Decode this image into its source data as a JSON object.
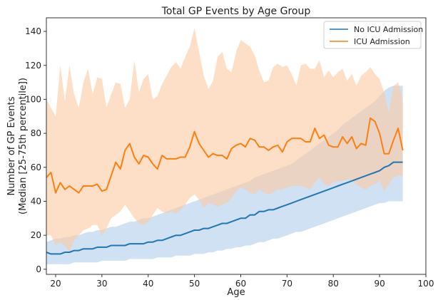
{
  "chart_data": {
    "type": "line",
    "title": "Total GP Events by Age Group",
    "xlabel": "Age",
    "ylabel_line1": "Number of GP Events",
    "ylabel_line2": "(Median [25-75th percentile])",
    "xlim": [
      18,
      100
    ],
    "ylim": [
      -3,
      148
    ],
    "xticks": [
      20,
      30,
      40,
      50,
      60,
      70,
      80,
      90,
      100
    ],
    "yticks": [
      0,
      20,
      40,
      60,
      80,
      100,
      120,
      140
    ],
    "legend_position": "top-right",
    "series": [
      {
        "name": "No ICU Admission",
        "color": "#1f77b4",
        "band_color": "#a8c8e8",
        "x": [
          18,
          19,
          20,
          21,
          22,
          23,
          24,
          25,
          26,
          27,
          28,
          29,
          30,
          31,
          32,
          33,
          34,
          35,
          36,
          37,
          38,
          39,
          40,
          41,
          42,
          43,
          44,
          45,
          46,
          47,
          48,
          49,
          50,
          51,
          52,
          53,
          54,
          55,
          56,
          57,
          58,
          59,
          60,
          61,
          62,
          63,
          64,
          65,
          66,
          67,
          68,
          69,
          70,
          71,
          72,
          73,
          74,
          75,
          76,
          77,
          78,
          79,
          80,
          81,
          82,
          83,
          84,
          85,
          86,
          87,
          88,
          89,
          90,
          91,
          92,
          93,
          94,
          95
        ],
        "median": [
          10,
          9,
          9,
          9,
          10,
          10,
          11,
          11,
          12,
          12,
          12,
          13,
          13,
          13,
          14,
          14,
          14,
          14,
          15,
          15,
          15,
          15,
          16,
          16,
          17,
          17,
          18,
          19,
          20,
          20,
          21,
          22,
          23,
          23,
          24,
          24,
          25,
          26,
          27,
          27,
          28,
          29,
          30,
          30,
          32,
          32,
          34,
          34,
          35,
          35,
          36,
          37,
          38,
          39,
          40,
          41,
          42,
          43,
          44,
          45,
          46,
          47,
          48,
          49,
          50,
          51,
          52,
          53,
          54,
          55,
          56,
          57,
          58,
          60,
          61,
          63,
          63,
          63
        ],
        "q1": [
          3,
          3,
          3,
          3,
          3,
          3,
          4,
          4,
          4,
          4,
          4,
          4,
          5,
          5,
          5,
          5,
          5,
          5,
          6,
          6,
          6,
          6,
          6,
          6,
          7,
          7,
          7,
          7,
          8,
          8,
          8,
          8,
          9,
          9,
          9,
          10,
          10,
          11,
          11,
          12,
          12,
          13,
          13,
          14,
          14,
          15,
          16,
          16,
          17,
          18,
          18,
          19,
          20,
          21,
          22,
          22,
          23,
          24,
          25,
          26,
          27,
          28,
          29,
          30,
          31,
          32,
          33,
          34,
          35,
          36,
          37,
          38,
          39,
          39,
          40,
          40,
          40,
          40
        ],
        "q3": [
          16,
          17,
          18,
          18,
          19,
          19,
          20,
          20,
          21,
          22,
          22,
          23,
          23,
          24,
          25,
          25,
          26,
          27,
          28,
          28,
          29,
          30,
          30,
          31,
          32,
          33,
          34,
          35,
          36,
          37,
          38,
          39,
          40,
          41,
          42,
          43,
          44,
          45,
          46,
          47,
          48,
          49,
          50,
          51,
          52,
          54,
          55,
          56,
          57,
          58,
          59,
          60,
          61,
          62,
          64,
          66,
          68,
          70,
          72,
          74,
          76,
          78,
          80,
          82,
          85,
          87,
          89,
          91,
          93,
          95,
          97,
          99,
          102,
          105,
          107,
          108,
          108,
          108
        ]
      },
      {
        "name": "ICU Admission",
        "color": "#ff7f0e",
        "band_color": "#fbc9a2",
        "x": [
          18,
          19,
          20,
          21,
          22,
          23,
          24,
          25,
          26,
          27,
          28,
          29,
          30,
          31,
          32,
          33,
          34,
          35,
          36,
          37,
          38,
          39,
          40,
          41,
          42,
          43,
          44,
          45,
          46,
          47,
          48,
          49,
          50,
          51,
          52,
          53,
          54,
          55,
          56,
          57,
          58,
          59,
          60,
          61,
          62,
          63,
          64,
          65,
          66,
          67,
          68,
          69,
          70,
          71,
          72,
          73,
          74,
          75,
          76,
          77,
          78,
          79,
          80,
          81,
          82,
          83,
          84,
          85,
          86,
          87,
          88,
          89,
          90,
          91,
          92,
          93,
          94,
          95
        ],
        "median": [
          54,
          57,
          45,
          51,
          47,
          49,
          47,
          45,
          49,
          49,
          49,
          50,
          46,
          47,
          55,
          63,
          59,
          70,
          74,
          66,
          62,
          67,
          66,
          62,
          59,
          67,
          65,
          65,
          65,
          66,
          66,
          72,
          81,
          74,
          70,
          66,
          68,
          67,
          67,
          65,
          71,
          73,
          74,
          72,
          77,
          76,
          72,
          72,
          70,
          72,
          73,
          69,
          75,
          77,
          77,
          77,
          75,
          75,
          83,
          77,
          79,
          73,
          72,
          72,
          78,
          74,
          78,
          71,
          74,
          73,
          89,
          87,
          80,
          68,
          68,
          76,
          83,
          70
        ],
        "q1": [
          20,
          20,
          14,
          16,
          14,
          10,
          17,
          20,
          23,
          24,
          26,
          26,
          20,
          24,
          30,
          32,
          34,
          38,
          34,
          30,
          27,
          26,
          28,
          32,
          36,
          34,
          33,
          34,
          33,
          35,
          38,
          42,
          44,
          41,
          36,
          39,
          38,
          37,
          38,
          39,
          42,
          46,
          48,
          47,
          45,
          44,
          47,
          45,
          44,
          45,
          47,
          47,
          48,
          49,
          49,
          49,
          48,
          47,
          51,
          54,
          50,
          49,
          51,
          52,
          52,
          53,
          52,
          50,
          48,
          47,
          49,
          50,
          52,
          46,
          50,
          54,
          55,
          55
        ],
        "q3": [
          100,
          95,
          90,
          120,
          99,
          120,
          103,
          95,
          110,
          118,
          103,
          113,
          112,
          95,
          103,
          110,
          109,
          95,
          100,
          123,
          104,
          112,
          115,
          100,
          102,
          109,
          114,
          119,
          122,
          118,
          125,
          131,
          142,
          128,
          114,
          106,
          111,
          125,
          128,
          118,
          116,
          128,
          135,
          133,
          131,
          126,
          117,
          110,
          111,
          119,
          121,
          119,
          120,
          115,
          108,
          120,
          121,
          118,
          118,
          123,
          113,
          117,
          113,
          116,
          118,
          111,
          115,
          108,
          114,
          116,
          119,
          115,
          112,
          104,
          92,
          108,
          110,
          100
        ]
      }
    ]
  }
}
